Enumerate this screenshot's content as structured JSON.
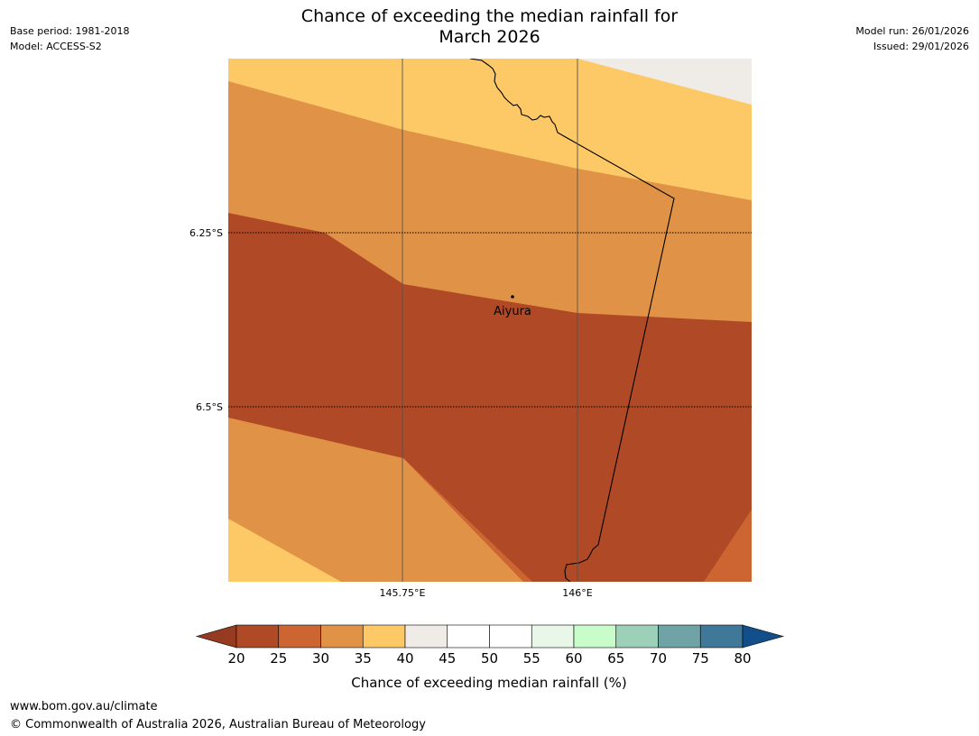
{
  "header": {
    "title_line1": "Chance of exceeding the median rainfall for",
    "title_line2": "March 2026",
    "base_period": "Base period: 1981-2018",
    "model": "Model: ACCESS-S2",
    "model_run": "Model run: 26/01/2026",
    "issued": "Issued: 29/01/2026"
  },
  "map": {
    "lat_labels": [
      "6.25°S",
      "6.5°S"
    ],
    "lon_labels": [
      "145.75°E",
      "146°E"
    ],
    "place": {
      "name": "Aiyura"
    }
  },
  "colorbar": {
    "label": "Chance of exceeding median rainfall (%)",
    "ticks": [
      "20",
      "25",
      "30",
      "35",
      "40",
      "45",
      "50",
      "55",
      "60",
      "65",
      "70",
      "75",
      "80"
    ],
    "colors": [
      "#b04a26",
      "#cc6531",
      "#e09346",
      "#fdc966",
      "#efebe6",
      "#ffffff",
      "#ffffff",
      "#e8f7e8",
      "#c8fcc8",
      "#9cd0b8",
      "#6fa3a6",
      "#3f7899"
    ],
    "under_color": "#963a21",
    "over_color": "#124e8a"
  },
  "colors": {
    "c20_25": "#b04a26",
    "c25_30": "#cc6531",
    "c30_35": "#e09346",
    "c35_40": "#fdc966",
    "c40_45": "#efebe6"
  },
  "footer": {
    "url": "www.bom.gov.au/climate",
    "copyright": "© Commonwealth of Australia 2026, Australian Bureau of Meteorology"
  }
}
